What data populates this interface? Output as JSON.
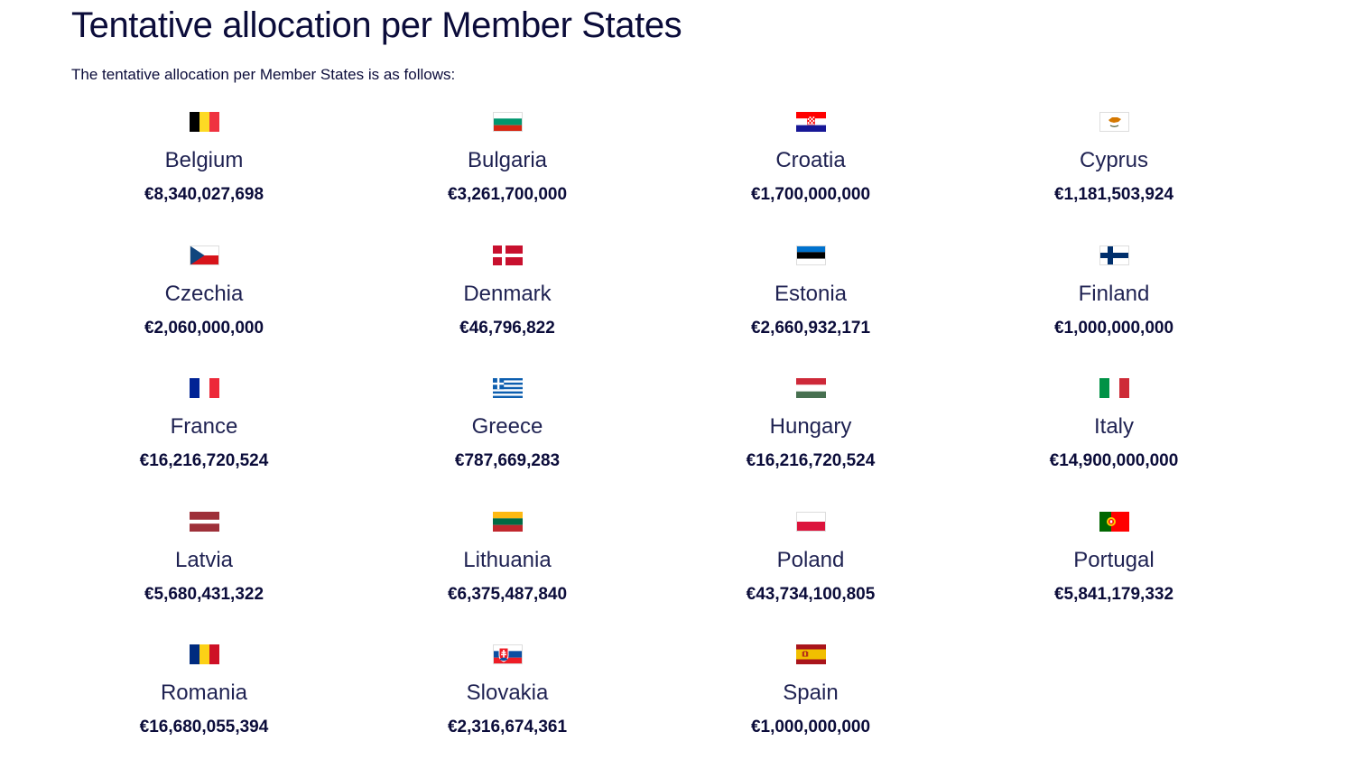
{
  "page": {
    "title": "Tentative allocation per Member States",
    "intro": "The tentative allocation per Member States is as follows:"
  },
  "countries": [
    {
      "name": "Belgium",
      "amount": "€8,340,027,698",
      "flag_icon": "belgium-flag-icon"
    },
    {
      "name": "Bulgaria",
      "amount": "€3,261,700,000",
      "flag_icon": "bulgaria-flag-icon"
    },
    {
      "name": "Croatia",
      "amount": "€1,700,000,000",
      "flag_icon": "croatia-flag-icon"
    },
    {
      "name": "Cyprus",
      "amount": "€1,181,503,924",
      "flag_icon": "cyprus-flag-icon"
    },
    {
      "name": "Czechia",
      "amount": "€2,060,000,000",
      "flag_icon": "czechia-flag-icon"
    },
    {
      "name": "Denmark",
      "amount": "€46,796,822",
      "flag_icon": "denmark-flag-icon"
    },
    {
      "name": "Estonia",
      "amount": "€2,660,932,171",
      "flag_icon": "estonia-flag-icon"
    },
    {
      "name": "Finland",
      "amount": "€1,000,000,000",
      "flag_icon": "finland-flag-icon"
    },
    {
      "name": "France",
      "amount": "€16,216,720,524",
      "flag_icon": "france-flag-icon"
    },
    {
      "name": "Greece",
      "amount": "€787,669,283",
      "flag_icon": "greece-flag-icon"
    },
    {
      "name": "Hungary",
      "amount": "€16,216,720,524",
      "flag_icon": "hungary-flag-icon"
    },
    {
      "name": "Italy",
      "amount": "€14,900,000,000",
      "flag_icon": "italy-flag-icon"
    },
    {
      "name": "Latvia",
      "amount": "€5,680,431,322",
      "flag_icon": "latvia-flag-icon"
    },
    {
      "name": "Lithuania",
      "amount": "€6,375,487,840",
      "flag_icon": "lithuania-flag-icon"
    },
    {
      "name": "Poland",
      "amount": "€43,734,100,805",
      "flag_icon": "poland-flag-icon"
    },
    {
      "name": "Portugal",
      "amount": "€5,841,179,332",
      "flag_icon": "portugal-flag-icon"
    },
    {
      "name": "Romania",
      "amount": "€16,680,055,394",
      "flag_icon": "romania-flag-icon"
    },
    {
      "name": "Slovakia",
      "amount": "€2,316,674,361",
      "flag_icon": "slovakia-flag-icon"
    },
    {
      "name": "Spain",
      "amount": "€1,000,000,000",
      "flag_icon": "spain-flag-icon"
    }
  ],
  "colors": {
    "text": "#0b0c3a",
    "country_name": "#1f2252",
    "background": "#ffffff"
  }
}
